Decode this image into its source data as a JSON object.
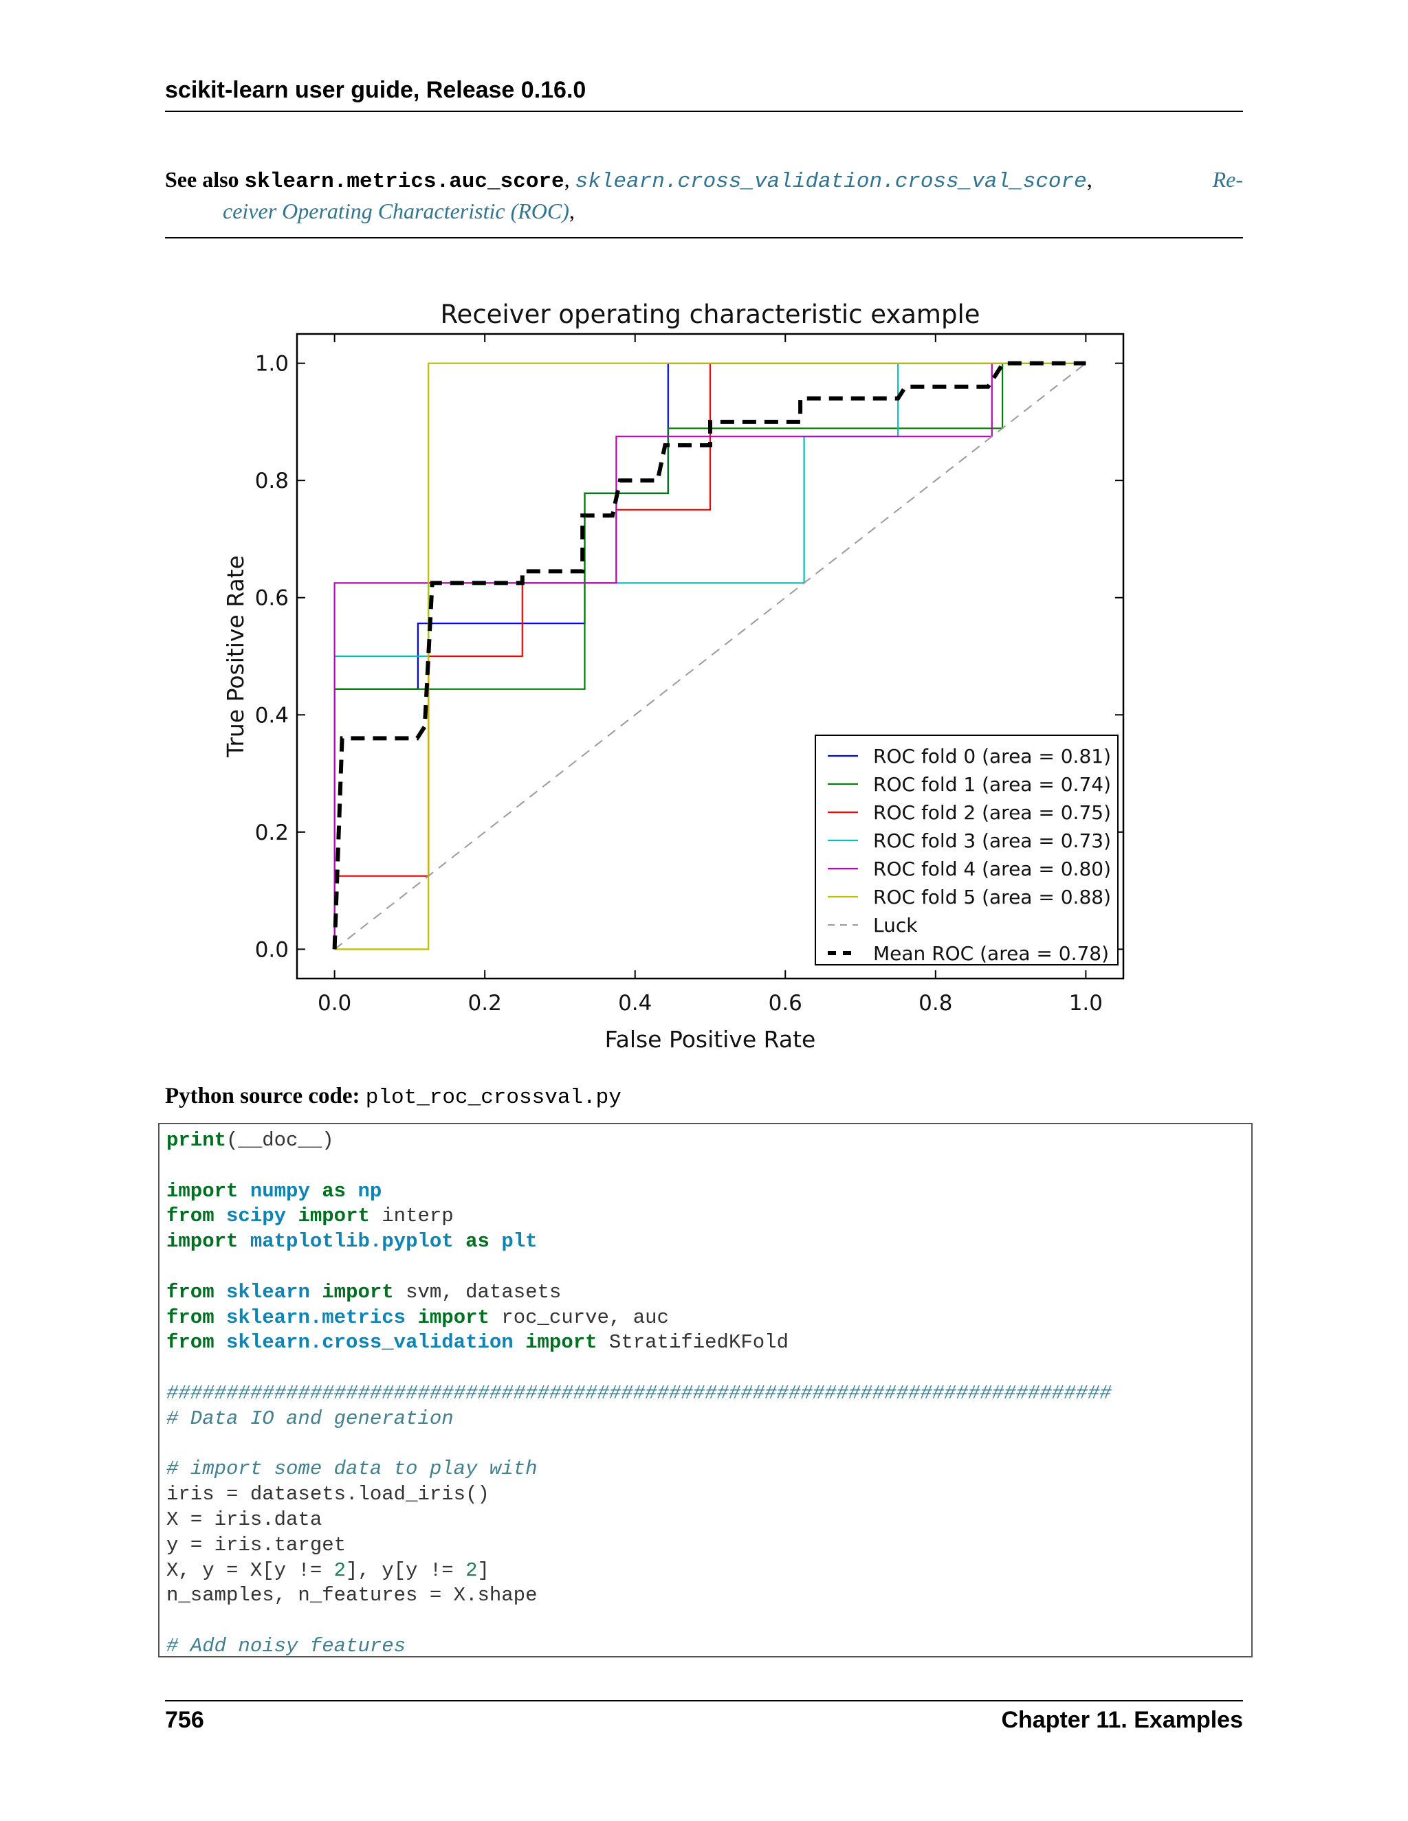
{
  "header": {
    "title": "scikit-learn user guide, Release 0.16.0"
  },
  "see_also": {
    "label": "See also",
    "item1": "sklearn.metrics.auc_score",
    "sep1": ",",
    "item2": "sklearn.cross_validation.cross_val_score",
    "sep2": ",",
    "item3_part1": "Re-",
    "item3_part2": "ceiver Operating Characteristic (ROC)",
    "sep3": ","
  },
  "chart_data": {
    "type": "line",
    "title": "Receiver operating characteristic example",
    "xlabel": "False Positive Rate",
    "ylabel": "True Positive Rate",
    "xlim": [
      -0.05,
      1.05
    ],
    "ylim": [
      -0.05,
      1.05
    ],
    "xticks": [
      "0.0",
      "0.2",
      "0.4",
      "0.6",
      "0.8",
      "1.0"
    ],
    "yticks": [
      "0.0",
      "0.2",
      "0.4",
      "0.6",
      "0.8",
      "1.0"
    ],
    "legend_position": "lower-right",
    "series": [
      {
        "name": "ROC fold 0 (area = 0.81)",
        "color": "#0000ff",
        "style": "solid",
        "x": [
          0,
          0,
          0.111,
          0.111,
          0.333,
          0.333,
          0.444,
          0.444,
          1.0
        ],
        "y": [
          0,
          0.444,
          0.444,
          0.556,
          0.556,
          0.778,
          0.778,
          1.0,
          1.0
        ]
      },
      {
        "name": "ROC fold 1 (area = 0.74)",
        "color": "#008000",
        "style": "solid",
        "x": [
          0,
          0,
          0.333,
          0.333,
          0.444,
          0.444,
          0.889,
          0.889,
          1.0
        ],
        "y": [
          0,
          0.444,
          0.444,
          0.778,
          0.778,
          0.889,
          0.889,
          1.0,
          1.0
        ]
      },
      {
        "name": "ROC fold 2 (area = 0.75)",
        "color": "#ff0000",
        "style": "solid",
        "x": [
          0,
          0,
          0.125,
          0.125,
          0.25,
          0.25,
          0.375,
          0.375,
          0.5,
          0.5,
          1.0
        ],
        "y": [
          0,
          0.125,
          0.125,
          0.5,
          0.5,
          0.625,
          0.625,
          0.75,
          0.75,
          1.0,
          1.0
        ]
      },
      {
        "name": "ROC fold 3 (area = 0.73)",
        "color": "#00bfbf",
        "style": "solid",
        "x": [
          0,
          0,
          0.125,
          0.125,
          0.625,
          0.625,
          0.75,
          0.75,
          1.0
        ],
        "y": [
          0,
          0.5,
          0.5,
          0.625,
          0.625,
          0.875,
          0.875,
          1.0,
          1.0
        ]
      },
      {
        "name": "ROC fold 4 (area = 0.80)",
        "color": "#bf00bf",
        "style": "solid",
        "x": [
          0,
          0,
          0.375,
          0.375,
          0.875,
          0.875,
          1.0
        ],
        "y": [
          0,
          0.625,
          0.625,
          0.875,
          0.875,
          1.0,
          1.0
        ]
      },
      {
        "name": "ROC fold 5 (area = 0.88)",
        "color": "#bfbf00",
        "style": "solid",
        "x": [
          0,
          0.125,
          0.125,
          1.0
        ],
        "y": [
          0,
          0,
          1.0,
          1.0
        ]
      },
      {
        "name": "Luck",
        "color": "#9a9a9a",
        "style": "dashed",
        "x": [
          0,
          1
        ],
        "y": [
          0,
          1
        ]
      },
      {
        "name": "Mean ROC (area = 0.78)",
        "color": "#000000",
        "style": "mean",
        "x": [
          0,
          0.01,
          0.01,
          0.11,
          0.12,
          0.13,
          0.25,
          0.25,
          0.33,
          0.33,
          0.37,
          0.38,
          0.43,
          0.44,
          0.5,
          0.5,
          0.62,
          0.62,
          0.75,
          0.76,
          0.87,
          0.89,
          1.0
        ],
        "y": [
          0,
          0.36,
          0.36,
          0.36,
          0.38,
          0.625,
          0.625,
          0.645,
          0.645,
          0.74,
          0.74,
          0.8,
          0.8,
          0.86,
          0.86,
          0.9,
          0.9,
          0.94,
          0.94,
          0.96,
          0.96,
          1.0,
          1.0
        ]
      }
    ]
  },
  "source": {
    "label": "Python source code:",
    "file": "plot_roc_crossval.py"
  },
  "code_lines": [
    [
      [
        "kw",
        "print"
      ],
      [
        "t",
        "(__doc__)"
      ]
    ],
    [],
    [
      [
        "kw",
        "import"
      ],
      [
        "t",
        " "
      ],
      [
        "mod",
        "numpy"
      ],
      [
        "t",
        " "
      ],
      [
        "kw",
        "as"
      ],
      [
        "t",
        " "
      ],
      [
        "mod",
        "np"
      ]
    ],
    [
      [
        "kw",
        "from"
      ],
      [
        "t",
        " "
      ],
      [
        "mod",
        "scipy"
      ],
      [
        "t",
        " "
      ],
      [
        "kw",
        "import"
      ],
      [
        "t",
        " interp"
      ]
    ],
    [
      [
        "kw",
        "import"
      ],
      [
        "t",
        " "
      ],
      [
        "mod",
        "matplotlib.pyplot"
      ],
      [
        "t",
        " "
      ],
      [
        "kw",
        "as"
      ],
      [
        "t",
        " "
      ],
      [
        "mod",
        "plt"
      ]
    ],
    [],
    [
      [
        "kw",
        "from"
      ],
      [
        "t",
        " "
      ],
      [
        "mod",
        "sklearn"
      ],
      [
        "t",
        " "
      ],
      [
        "kw",
        "import"
      ],
      [
        "t",
        " svm, datasets"
      ]
    ],
    [
      [
        "kw",
        "from"
      ],
      [
        "t",
        " "
      ],
      [
        "mod",
        "sklearn.metrics"
      ],
      [
        "t",
        " "
      ],
      [
        "kw",
        "import"
      ],
      [
        "t",
        " roc_curve, auc"
      ]
    ],
    [
      [
        "kw",
        "from"
      ],
      [
        "t",
        " "
      ],
      [
        "mod",
        "sklearn.cross_validation"
      ],
      [
        "t",
        " "
      ],
      [
        "kw",
        "import"
      ],
      [
        "t",
        " StratifiedKFold"
      ]
    ],
    [],
    [
      [
        "cm",
        "###############################################################################"
      ]
    ],
    [
      [
        "cm",
        "# Data IO and generation"
      ]
    ],
    [],
    [
      [
        "cm",
        "# import some data to play with"
      ]
    ],
    [
      [
        "t",
        "iris = datasets.load_iris()"
      ]
    ],
    [
      [
        "t",
        "X = iris.data"
      ]
    ],
    [
      [
        "t",
        "y = iris.target"
      ]
    ],
    [
      [
        "t",
        "X, y = X[y != "
      ],
      [
        "num",
        "2"
      ],
      [
        "t",
        "], y[y != "
      ],
      [
        "num",
        "2"
      ],
      [
        "t",
        "]"
      ]
    ],
    [
      [
        "t",
        "n_samples, n_features = X.shape"
      ]
    ],
    [],
    [
      [
        "cm",
        "# Add noisy features"
      ]
    ]
  ],
  "footer": {
    "page": "756",
    "chapter": "Chapter 11.  Examples"
  }
}
